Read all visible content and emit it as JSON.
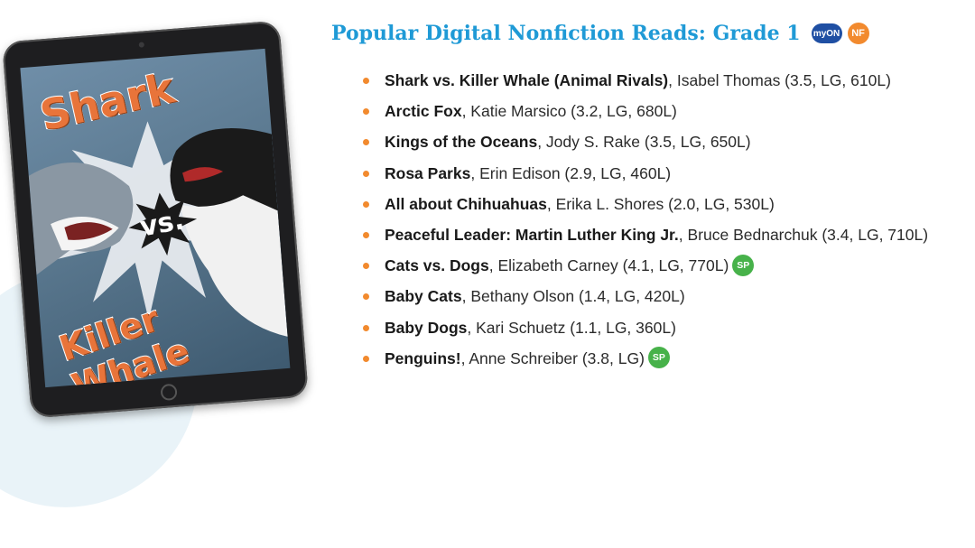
{
  "heading": {
    "title": "Popular Digital Nonfiction Reads: Grade 1",
    "badge_myon": "myON",
    "badge_nf": "NF"
  },
  "cover": {
    "title_top": "Shark",
    "vs": "vs.",
    "title_bottom": "Killer Whale"
  },
  "books": [
    {
      "title": "Shark vs. Killer Whale (Animal Rivals)",
      "rest": ", Isabel Thomas (3.5, LG, 610L)",
      "sp": ""
    },
    {
      "title": "Arctic Fox",
      "rest": ", Katie Marsico (3.2, LG, 680L)",
      "sp": ""
    },
    {
      "title": "Kings of the Oceans",
      "rest": ", Jody S. Rake (3.5, LG, 650L)",
      "sp": ""
    },
    {
      "title": "Rosa Parks",
      "rest": ", Erin Edison (2.9, LG, 460L)",
      "sp": ""
    },
    {
      "title": "All about Chihuahuas",
      "rest": ", Erika L. Shores (2.0, LG, 530L)",
      "sp": ""
    },
    {
      "title": "Peaceful Leader: Martin Luther King Jr.",
      "rest": ", Bruce Bednarchuk (3.4, LG, 710L)",
      "sp": ""
    },
    {
      "title": "Cats vs. Dogs",
      "rest": ", Elizabeth Carney (4.1, LG, 770L)",
      "sp": "SP"
    },
    {
      "title": "Baby Cats",
      "rest": ", Bethany Olson (1.4, LG, 420L)",
      "sp": ""
    },
    {
      "title": "Baby Dogs",
      "rest": ", Kari Schuetz (1.1, LG, 360L)",
      "sp": ""
    },
    {
      "title": "Penguins!",
      "rest": ", Anne Schreiber (3.8, LG)",
      "sp": "SP"
    }
  ],
  "colors": {
    "heading": "#1f9ad6",
    "bullet": "#f28a2e",
    "badge_myon": "#1f4fa3",
    "badge_nf": "#f28a2e",
    "badge_sp": "#47b24a"
  }
}
